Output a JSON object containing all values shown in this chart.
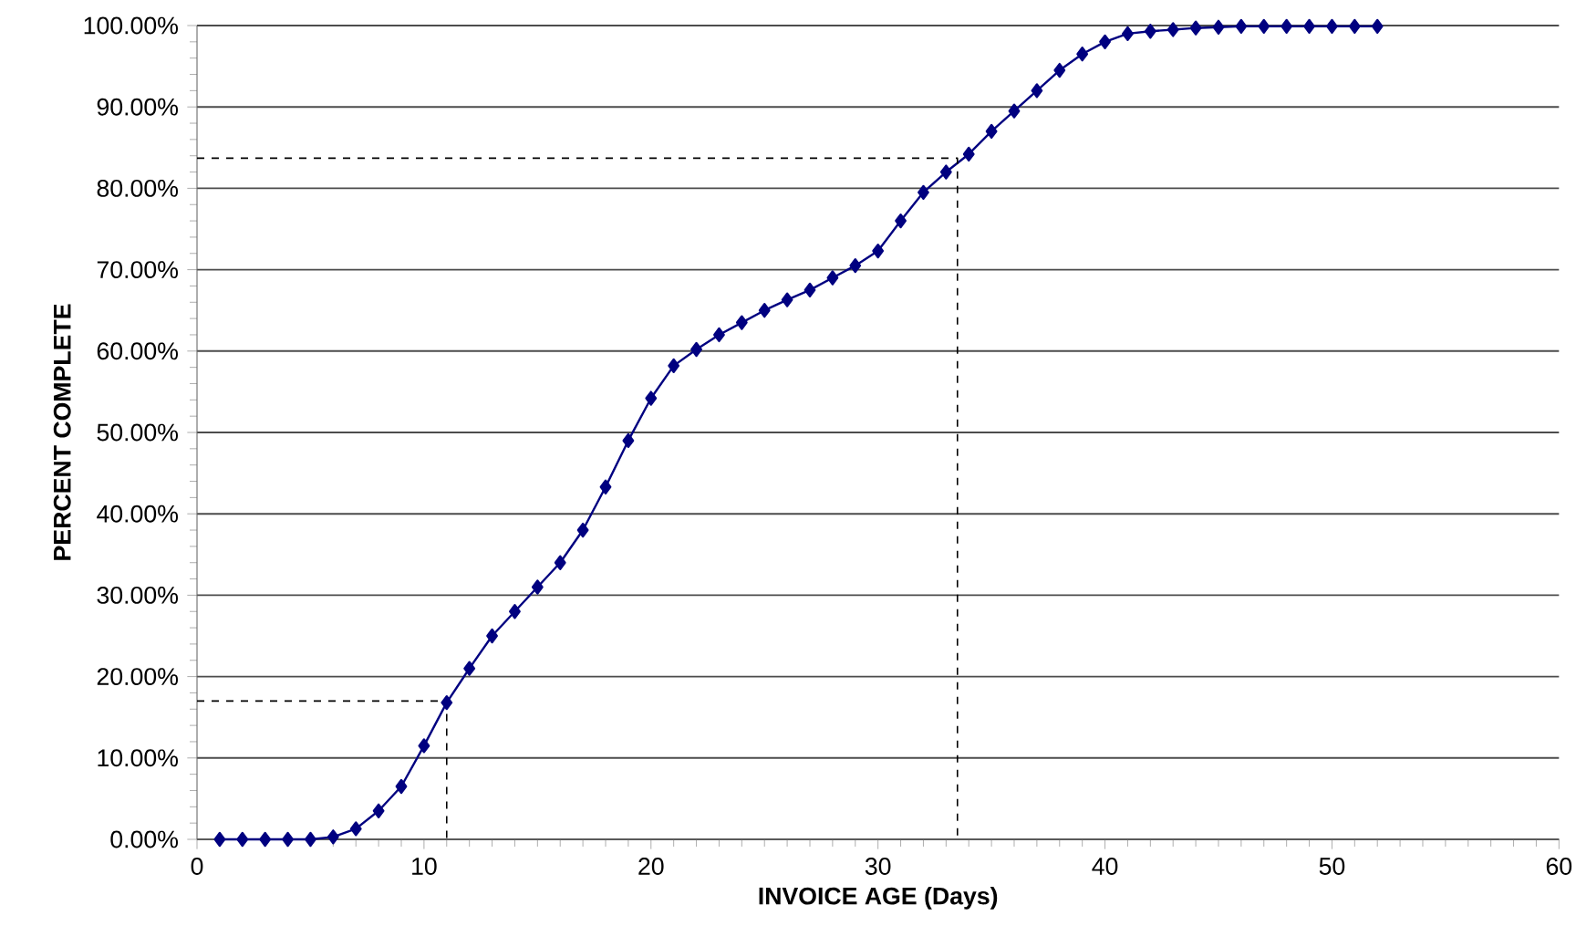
{
  "chart_data": {
    "type": "line",
    "xlabel": "INVOICE AGE (Days)",
    "ylabel": "PERCENT COMPLETE",
    "x": [
      1,
      2,
      3,
      4,
      5,
      6,
      7,
      8,
      9,
      10,
      11,
      12,
      13,
      14,
      15,
      16,
      17,
      18,
      19,
      20,
      21,
      22,
      23,
      24,
      25,
      26,
      27,
      28,
      29,
      30,
      31,
      32,
      33,
      34,
      35,
      36,
      37,
      38,
      39,
      40,
      41,
      42,
      43,
      44,
      45,
      46,
      47,
      48,
      49,
      50,
      51,
      52
    ],
    "series": [
      {
        "color": "#000080",
        "marker": "diamond",
        "line_style": "solid",
        "values": [
          0,
          0,
          0,
          0,
          0,
          0.3,
          1.3,
          3.5,
          6.5,
          11.5,
          16.8,
          21,
          25,
          28,
          31,
          34,
          38,
          43.3,
          49,
          54.2,
          58.2,
          60.2,
          62,
          63.5,
          65,
          66.3,
          67.5,
          69,
          70.5,
          72.3,
          76,
          79.5,
          82,
          84.2,
          87,
          89.5,
          92,
          94.5,
          96.5,
          98,
          99,
          99.3,
          99.5,
          99.7,
          99.8,
          99.9,
          99.9,
          99.9,
          99.9,
          99.9,
          99.9,
          99.9
        ]
      },
      {
        "color": "#000000",
        "marker": "none",
        "line_style": "dashed",
        "x": [
          0,
          11,
          11
        ],
        "values": [
          17,
          17,
          0
        ]
      },
      {
        "color": "#000000",
        "marker": "none",
        "line_style": "dashed",
        "x": [
          0,
          33.5,
          33.5
        ],
        "values": [
          83.7,
          83.7,
          0
        ]
      }
    ],
    "xlim": [
      0,
      60
    ],
    "ylim": [
      0,
      100
    ],
    "xticks": [
      0,
      10,
      20,
      30,
      40,
      50,
      60
    ],
    "yticks": [
      {
        "value": 0,
        "label": "0.00%"
      },
      {
        "value": 10,
        "label": "10.00%"
      },
      {
        "value": 20,
        "label": "20.00%"
      },
      {
        "value": 30,
        "label": "30.00%"
      },
      {
        "value": 40,
        "label": "40.00%"
      },
      {
        "value": 50,
        "label": "50.00%"
      },
      {
        "value": 60,
        "label": "60.00%"
      },
      {
        "value": 70,
        "label": "70.00%"
      },
      {
        "value": 80,
        "label": "80.00%"
      },
      {
        "value": 90,
        "label": "90.00%"
      },
      {
        "value": 100,
        "label": "100.00%"
      }
    ],
    "grid": "y"
  }
}
